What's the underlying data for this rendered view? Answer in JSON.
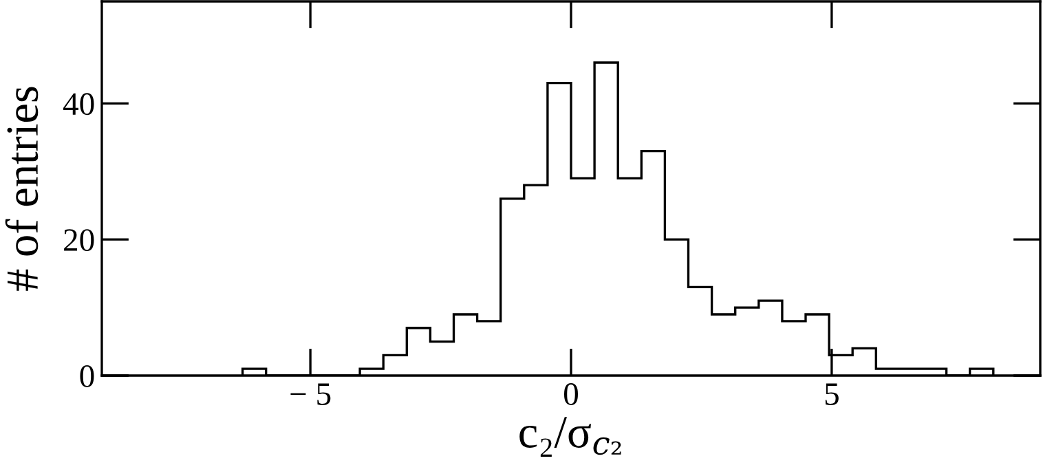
{
  "chart_data": {
    "type": "histogram",
    "xlabel": "c₂/σ$_{c₂}$",
    "ylabel": "# of entries",
    "bins": [
      -6.3,
      -5.85,
      -5.4,
      -4.95,
      -4.5,
      -4.05,
      -3.6,
      -3.15,
      -2.7,
      -2.25,
      -1.8,
      -1.35,
      -0.9,
      -0.45,
      0,
      0.45,
      0.9,
      1.35,
      1.8,
      2.25,
      2.7,
      3.15,
      3.6,
      4.05,
      4.5,
      4.95,
      5.4,
      5.85,
      6.3,
      6.75,
      7.2,
      7.65,
      8.1
    ],
    "values": [
      1,
      0,
      0,
      0,
      0,
      1,
      3,
      7,
      5,
      9,
      8,
      26,
      28,
      43,
      29,
      46,
      29,
      33,
      20,
      13,
      9,
      10,
      11,
      8,
      9,
      3,
      4,
      1,
      1,
      1,
      0,
      1
    ],
    "color": "#000000",
    "xlim": [
      -9,
      9
    ],
    "ylim": [
      0,
      55
    ],
    "xticks": [
      {
        "value": -5,
        "label": "− 5"
      },
      0,
      5
    ],
    "yticks": [
      0,
      20,
      40
    ],
    "grid": false,
    "legend": false
  }
}
